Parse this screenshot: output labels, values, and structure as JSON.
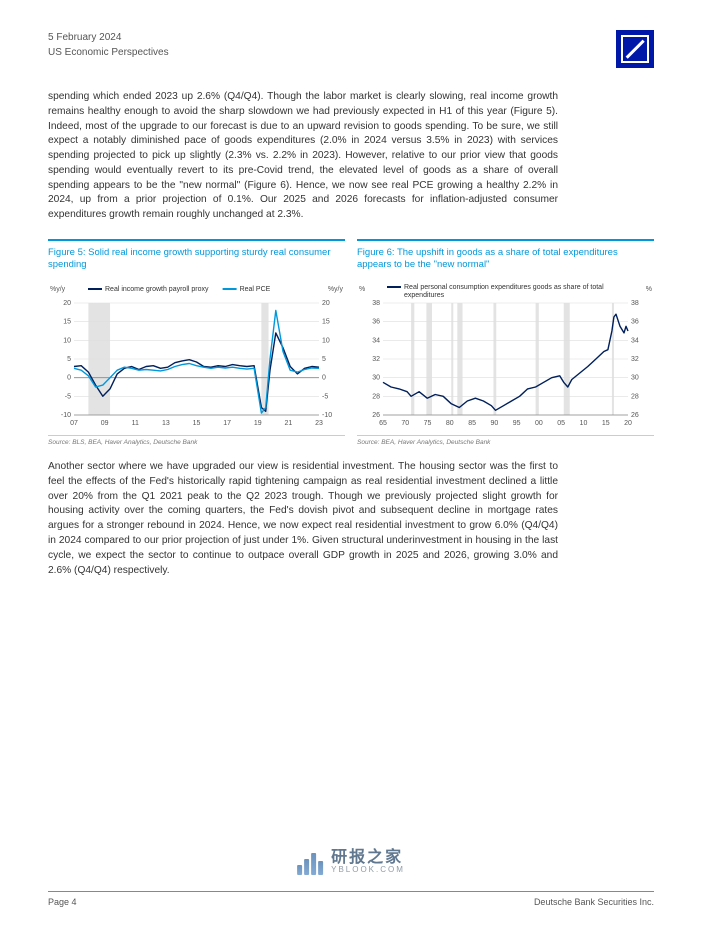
{
  "header": {
    "date": "5 February 2024",
    "title": "US Economic Perspectives"
  },
  "paragraph1": "spending which ended 2023 up 2.6% (Q4/Q4). Though the labor market is clearly slowing, real income growth remains healthy enough to avoid the sharp slowdown we had previously expected in H1 of this year (Figure 5). Indeed, most of the upgrade to our forecast is due to an upward revision to goods spending. To be sure, we still expect a notably diminished pace of goods expenditures (2.0% in 2024 versus 3.5% in 2023) with services spending projected to pick up slightly (2.3% vs. 2.2% in 2023). However, relative to our prior view that goods spending would eventually revert to its pre-Covid trend, the elevated level of goods as a share of overall spending appears to be the \"new normal\" (Figure 6). Hence, we now see real PCE growing a healthy 2.2% in 2024, up from a prior projection of 0.1%. Our 2025 and 2026 forecasts for inflation-adjusted consumer expenditures growth remain roughly unchanged at 2.3%.",
  "paragraph2": "Another sector where we have upgraded our view is residential investment. The housing sector was the first to feel the effects of the Fed's historically rapid tightening campaign as real residential investment declined a little over 20% from the Q1 2021 peak to the Q2 2023 trough. Though we previously projected slight growth for housing activity over the coming quarters, the Fed's dovish pivot and subsequent decline in mortgage rates argues for a stronger rebound in 2024. Hence, we now expect real residential investment to grow 6.0% (Q4/Q4) in 2024 compared to our prior projection of just under 1%. Given structural underinvestment in housing in the last cycle, we expect the sector to continue to outpace overall GDP growth in 2025 and 2026, growing 3.0% and 2.6% (Q4/Q4) respectively.",
  "figure5": {
    "title": "Figure 5: Solid real income growth supporting sturdy real consumer spending",
    "source": "Source: BLS, BEA, Haver Analytics, Deutsche Bank",
    "y_unit_left": "%y/y",
    "y_unit_right": "%y/y",
    "ylim": [
      -10,
      20
    ],
    "ytick_step": 5,
    "x_ticks": [
      "07",
      "09",
      "11",
      "13",
      "15",
      "17",
      "19",
      "21",
      "23"
    ],
    "xlim": [
      2007,
      2024
    ],
    "legend": [
      {
        "label": "Real income growth payroll proxy",
        "color": "#001f5b"
      },
      {
        "label": "Real PCE",
        "color": "#0098db"
      }
    ],
    "recessions": [
      [
        2008,
        2009.5
      ],
      [
        2020,
        2020.5
      ]
    ],
    "series_income": [
      [
        2007,
        3.0
      ],
      [
        2007.5,
        3.2
      ],
      [
        2008,
        1.5
      ],
      [
        2008.5,
        -2.0
      ],
      [
        2009,
        -5.0
      ],
      [
        2009.5,
        -3.0
      ],
      [
        2010,
        1.0
      ],
      [
        2010.5,
        2.5
      ],
      [
        2011,
        3.0
      ],
      [
        2011.5,
        2.2
      ],
      [
        2012,
        3.0
      ],
      [
        2012.5,
        3.2
      ],
      [
        2013,
        2.5
      ],
      [
        2013.5,
        2.8
      ],
      [
        2014,
        4.0
      ],
      [
        2014.5,
        4.5
      ],
      [
        2015,
        4.8
      ],
      [
        2015.5,
        4.2
      ],
      [
        2016,
        3.0
      ],
      [
        2016.5,
        2.8
      ],
      [
        2017,
        3.2
      ],
      [
        2017.5,
        3.0
      ],
      [
        2018,
        3.5
      ],
      [
        2018.5,
        3.2
      ],
      [
        2019,
        3.0
      ],
      [
        2019.5,
        3.2
      ],
      [
        2020,
        -8.0
      ],
      [
        2020.3,
        -9.0
      ],
      [
        2020.6,
        2.0
      ],
      [
        2021,
        12.0
      ],
      [
        2021.5,
        8.0
      ],
      [
        2022,
        3.0
      ],
      [
        2022.5,
        1.0
      ],
      [
        2023,
        2.5
      ],
      [
        2023.5,
        3.0
      ],
      [
        2024,
        2.8
      ]
    ],
    "series_pce": [
      [
        2007,
        2.5
      ],
      [
        2007.5,
        2.0
      ],
      [
        2008,
        0.5
      ],
      [
        2008.5,
        -2.5
      ],
      [
        2009,
        -2.0
      ],
      [
        2009.5,
        0.0
      ],
      [
        2010,
        2.0
      ],
      [
        2010.5,
        2.8
      ],
      [
        2011,
        2.5
      ],
      [
        2011.5,
        2.0
      ],
      [
        2012,
        2.2
      ],
      [
        2012.5,
        2.0
      ],
      [
        2013,
        1.8
      ],
      [
        2013.5,
        2.2
      ],
      [
        2014,
        3.0
      ],
      [
        2014.5,
        3.5
      ],
      [
        2015,
        3.8
      ],
      [
        2015.5,
        3.2
      ],
      [
        2016,
        2.8
      ],
      [
        2016.5,
        2.5
      ],
      [
        2017,
        2.8
      ],
      [
        2017.5,
        2.6
      ],
      [
        2018,
        2.8
      ],
      [
        2018.5,
        2.5
      ],
      [
        2019,
        2.3
      ],
      [
        2019.5,
        2.5
      ],
      [
        2020,
        -9.5
      ],
      [
        2020.3,
        -8.0
      ],
      [
        2020.6,
        5.0
      ],
      [
        2021,
        18.0
      ],
      [
        2021.5,
        7.0
      ],
      [
        2022,
        2.0
      ],
      [
        2022.5,
        1.5
      ],
      [
        2023,
        2.2
      ],
      [
        2023.5,
        2.6
      ],
      [
        2024,
        2.5
      ]
    ],
    "grid_color": "#dddddd",
    "line_width": 1.4,
    "background_color": "#ffffff"
  },
  "figure6": {
    "title": "Figure 6: The upshift in goods as a share of total expenditures appears to be the \"new normal\"",
    "source": "Source: BEA, Haver Analytics, Deutsche Bank",
    "y_unit_left": "%",
    "y_unit_right": "%",
    "ylim": [
      26,
      38
    ],
    "ytick_step": 2,
    "x_ticks": [
      "65",
      "70",
      "75",
      "80",
      "85",
      "90",
      "95",
      "00",
      "05",
      "10",
      "15",
      "20"
    ],
    "xlim": [
      1963,
      2024
    ],
    "legend": [
      {
        "label": "Real personal consumption expenditures goods as share of total expenditures",
        "color": "#001f5b"
      }
    ],
    "recessions": [
      [
        1970,
        1970.8
      ],
      [
        1973.8,
        1975.2
      ],
      [
        1980,
        1980.5
      ],
      [
        1981.5,
        1982.8
      ],
      [
        1990.5,
        1991.2
      ],
      [
        2001,
        2001.8
      ],
      [
        2008,
        2009.5
      ],
      [
        2020,
        2020.5
      ]
    ],
    "series_share": [
      [
        1963,
        29.5
      ],
      [
        1965,
        29.0
      ],
      [
        1967,
        28.8
      ],
      [
        1969,
        28.5
      ],
      [
        1970,
        28.0
      ],
      [
        1972,
        28.5
      ],
      [
        1974,
        27.8
      ],
      [
        1976,
        28.2
      ],
      [
        1978,
        28.0
      ],
      [
        1980,
        27.2
      ],
      [
        1982,
        26.8
      ],
      [
        1984,
        27.5
      ],
      [
        1986,
        27.8
      ],
      [
        1988,
        27.5
      ],
      [
        1990,
        27.0
      ],
      [
        1991,
        26.5
      ],
      [
        1993,
        27.0
      ],
      [
        1995,
        27.5
      ],
      [
        1997,
        28.0
      ],
      [
        1999,
        28.8
      ],
      [
        2001,
        29.0
      ],
      [
        2003,
        29.5
      ],
      [
        2005,
        30.0
      ],
      [
        2007,
        30.2
      ],
      [
        2008,
        29.5
      ],
      [
        2009,
        29.0
      ],
      [
        2010,
        29.8
      ],
      [
        2012,
        30.5
      ],
      [
        2014,
        31.2
      ],
      [
        2016,
        32.0
      ],
      [
        2018,
        32.8
      ],
      [
        2019,
        33.0
      ],
      [
        2020,
        35.0
      ],
      [
        2020.5,
        36.5
      ],
      [
        2021,
        36.8
      ],
      [
        2022,
        35.5
      ],
      [
        2023,
        34.8
      ],
      [
        2023.5,
        35.5
      ],
      [
        2024,
        35.0
      ]
    ],
    "grid_color": "#dddddd",
    "line_width": 1.4,
    "background_color": "#ffffff"
  },
  "footer": {
    "page": "Page 4",
    "company": "Deutsche Bank Securities Inc."
  },
  "watermark": {
    "cn": "研报之家",
    "url": "YBLOOK.COM"
  }
}
